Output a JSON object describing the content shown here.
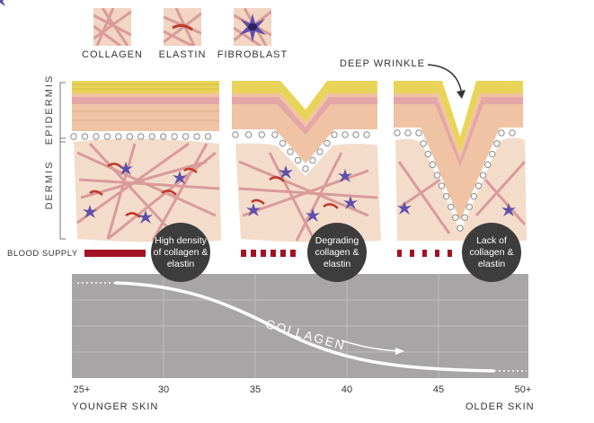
{
  "legend": [
    {
      "label": "COLLAGEN",
      "icon": "collagen-swatch"
    },
    {
      "label": "ELASTIN",
      "icon": "elastin-swatch"
    },
    {
      "label": "FIBROBLAST",
      "icon": "fibroblast-swatch"
    }
  ],
  "callout": "DEEP WRINKLE",
  "layers": {
    "epidermis": "EPIDERMIS",
    "dermis": "DERMIS"
  },
  "blood_supply": "BLOOD SUPPLY",
  "panels": [
    {
      "bubble": "High density of collagen & elastin"
    },
    {
      "bubble": "Degrading collagen & elastin"
    },
    {
      "bubble": "Lack of collagen & elastin"
    }
  ],
  "curve_label": "COLLAGEN",
  "ticks": [
    "25+",
    "30",
    "35",
    "40",
    "45",
    "50+"
  ],
  "axis": {
    "left": "YOUNGER SKIN",
    "right": "OLDER SKIN"
  },
  "colors": {
    "epidermis_top": "#e9d45a",
    "epidermis_body": "#efc3a4",
    "dermis": "#f4dccb",
    "collagen": "#d99a9a",
    "elastin": "#c0392b",
    "fibroblast": "#5e4fa8",
    "blood": "#a31224",
    "chart_bg": "#a7a5a6",
    "bubble": "#3d3d3d"
  }
}
